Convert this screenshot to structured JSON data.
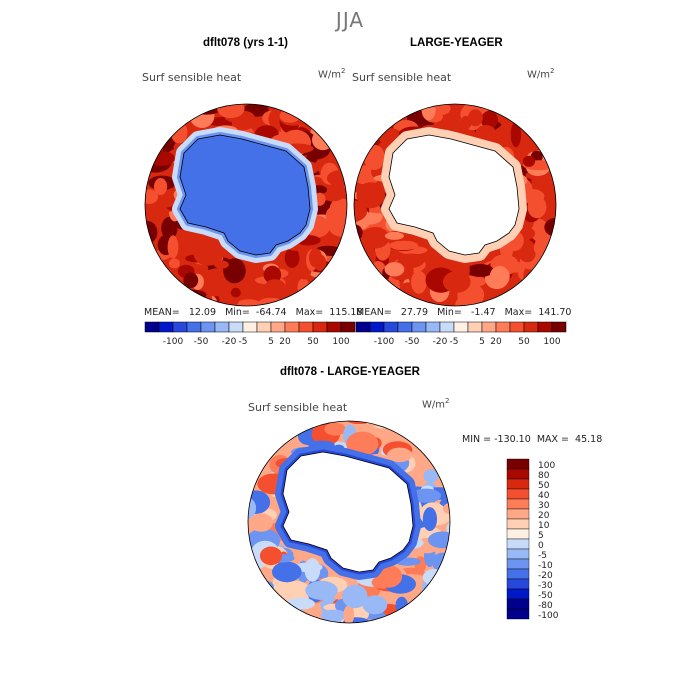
{
  "figure": {
    "season": "JJA",
    "units_base": "W/m",
    "units_exp": "2"
  },
  "colors": {
    "scale": [
      "#00008c",
      "#0018c8",
      "#2848dc",
      "#4470e8",
      "#6c94f0",
      "#98b8f6",
      "#c8dcfa",
      "#fff0e4",
      "#ffd0b4",
      "#ffa888",
      "#ff7c58",
      "#f45030",
      "#d82810",
      "#a80800",
      "#780000"
    ],
    "land": "#ffffff",
    "coast": "#000000"
  },
  "chart_data": [
    {
      "type": "heatmap",
      "projection": "south-polar-stereographic",
      "title": "dflt078 (yrs 1-1)",
      "variable": "Surf sensible heat",
      "stats_text": "MEAN=   12.09   Min=  -64.74   Max=  115.18",
      "mean": 12.09,
      "min": -64.74,
      "max": 115.18,
      "colorbar_ticks": [
        "-100",
        "-50",
        "-20",
        "-5",
        "5",
        "20",
        "50",
        "100"
      ],
      "regions": {
        "ocean_background": 40,
        "near_ice_margin": -5,
        "antarctica": -40
      }
    },
    {
      "type": "heatmap",
      "projection": "south-polar-stereographic",
      "title": "LARGE-YEAGER",
      "variable": "Surf sensible heat",
      "stats_text": "MEAN=   27.79   Min=   -1.47   Max=  141.70",
      "mean": 27.79,
      "min": -1.47,
      "max": 141.7,
      "colorbar_ticks": [
        "-100",
        "-50",
        "-20",
        "-5",
        "5",
        "20",
        "50",
        "100"
      ],
      "regions": {
        "ocean_background": 45,
        "near_ice_margin": 5,
        "antarctica": null
      }
    },
    {
      "type": "heatmap",
      "projection": "south-polar-stereographic",
      "title": "dflt078 - LARGE-YEAGER",
      "variable": "Surf sensible heat",
      "stats_text": "MIN = -130.10  MAX =  45.18",
      "min": -130.1,
      "max": 45.18,
      "colorbar_ticks": [
        "100",
        "80",
        "50",
        "40",
        "30",
        "20",
        "10",
        "5",
        "0",
        "-5",
        "-10",
        "-20",
        "-30",
        "-50",
        "-80",
        "-100"
      ],
      "regions": {
        "ocean_background": 8,
        "near_ice_margin": -30,
        "antarctica": null
      }
    }
  ]
}
